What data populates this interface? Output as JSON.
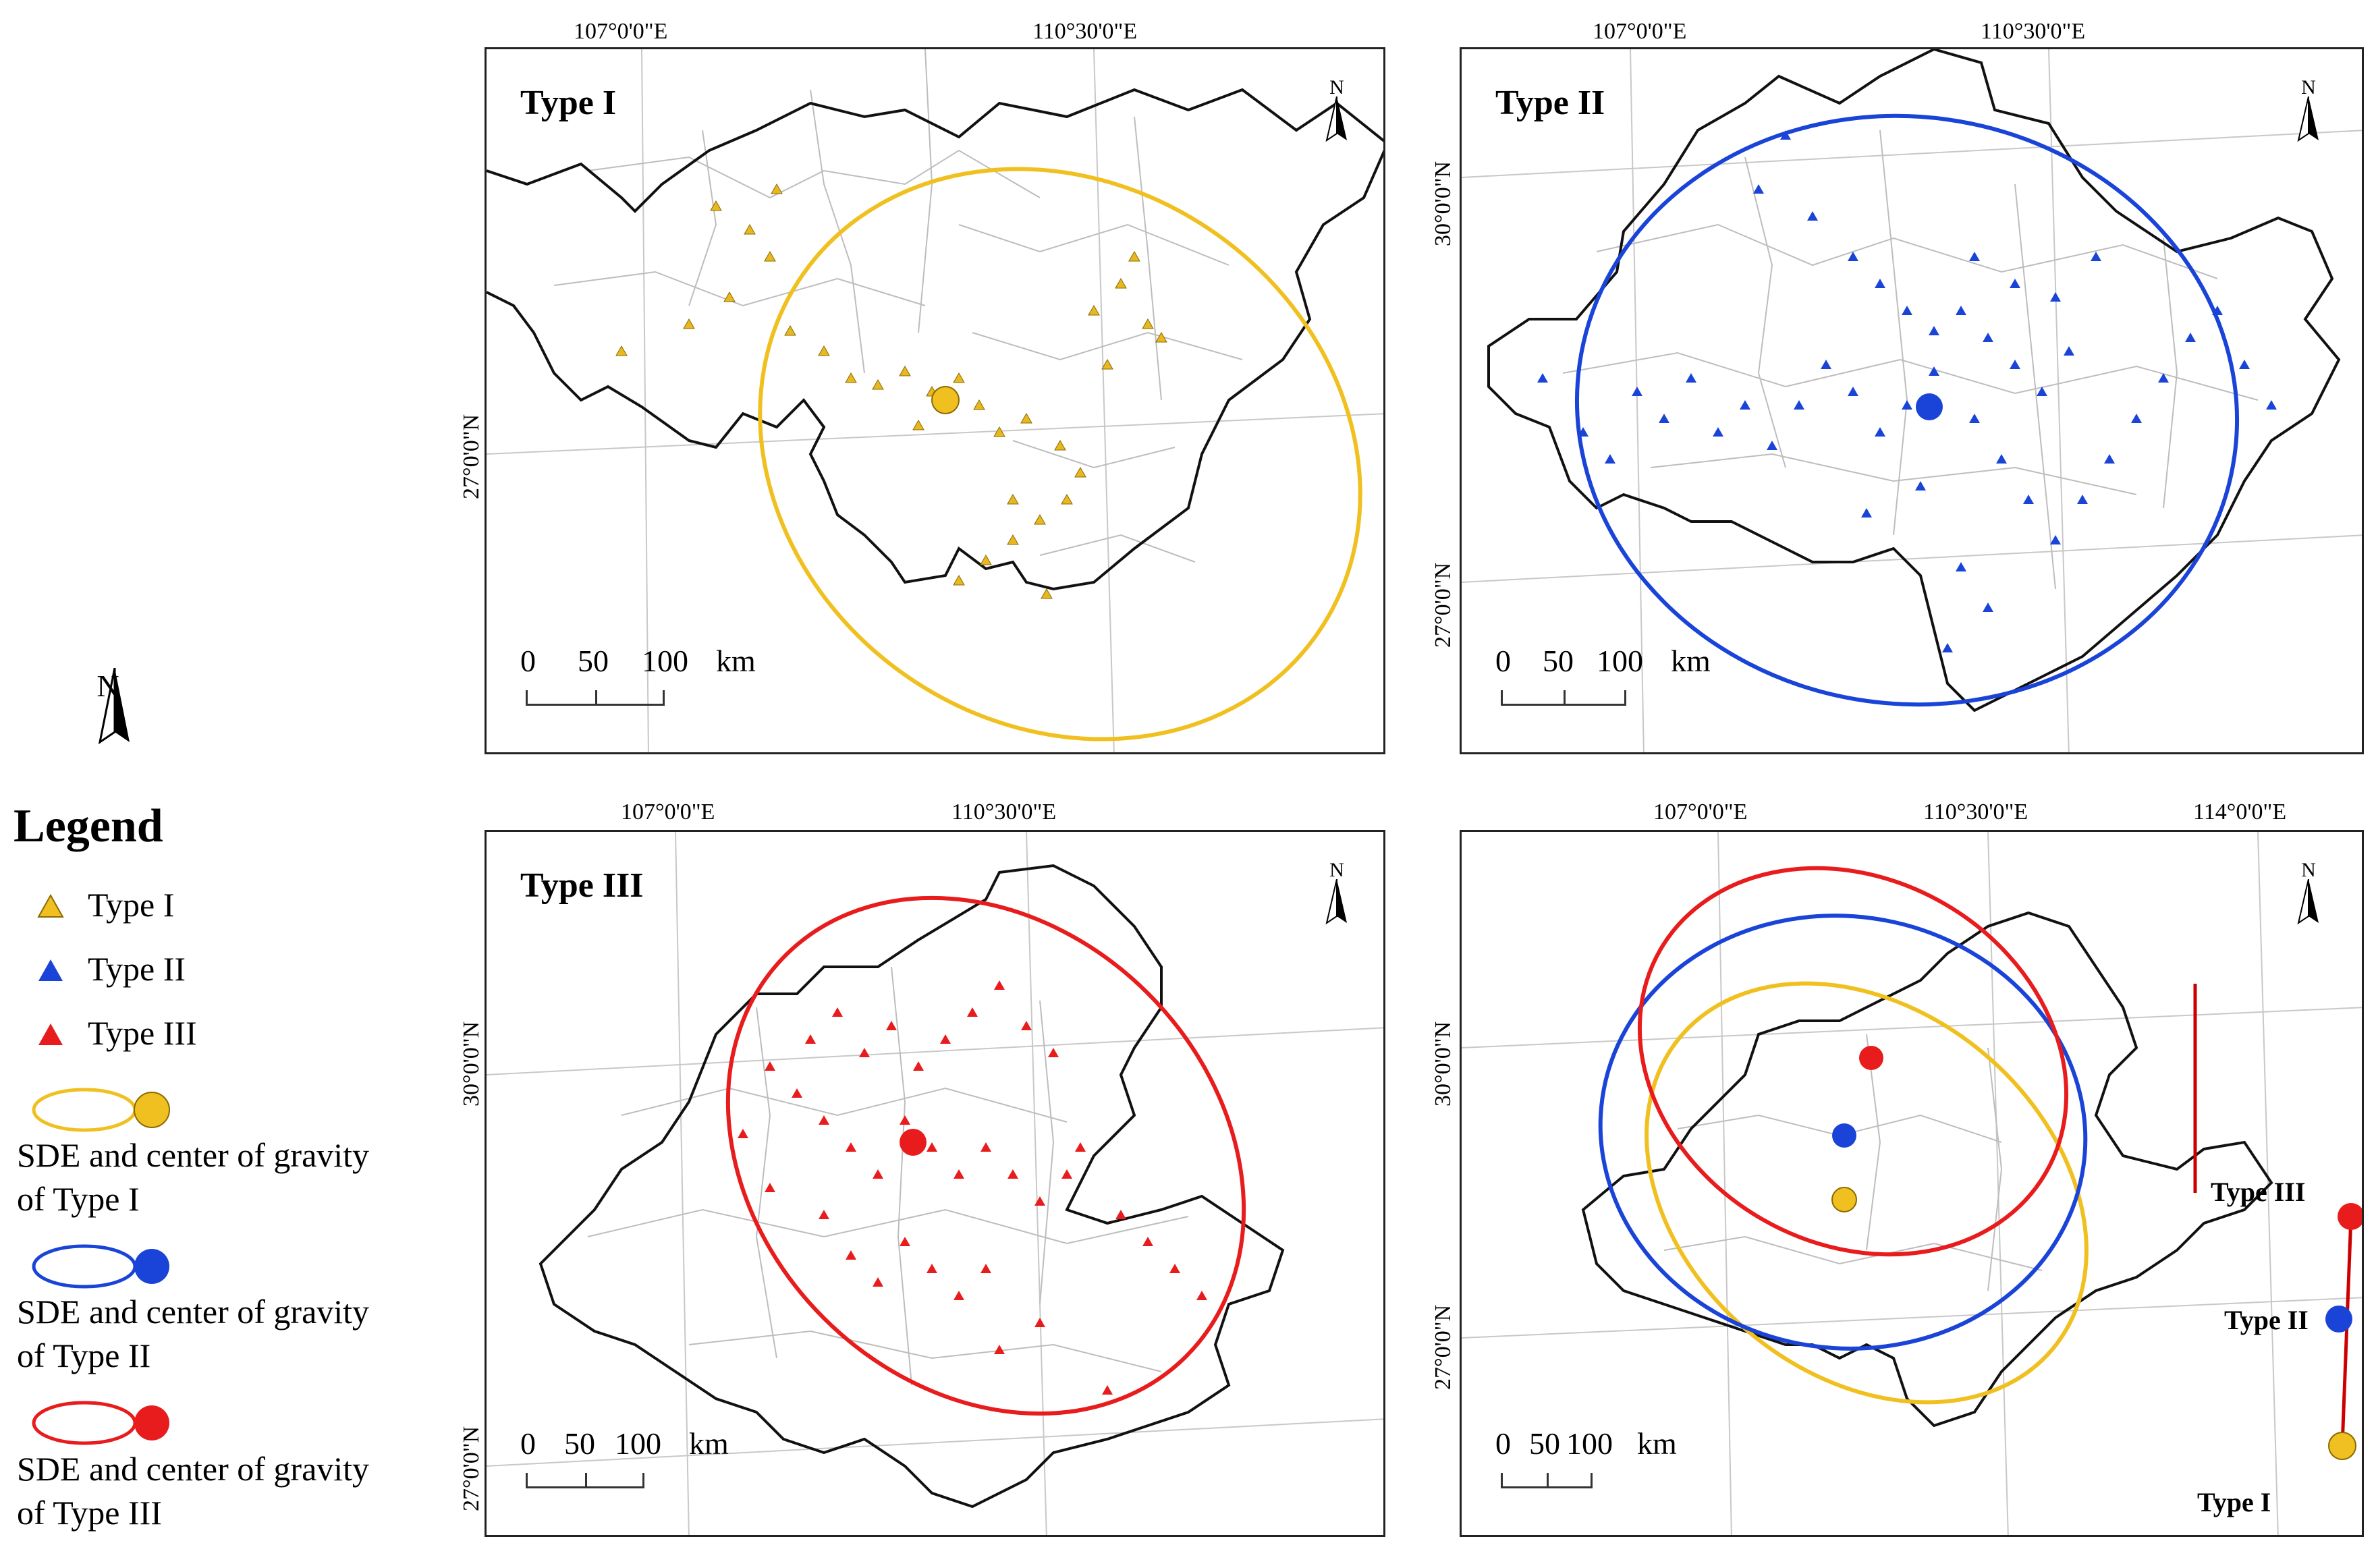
{
  "panels": [
    {
      "title": "Type I",
      "lon_labels": [
        "107°0'0\"E",
        "110°30'0\"E"
      ],
      "lat_labels": [
        "27°0'0\"N"
      ],
      "scale": [
        "0",
        "50",
        "100",
        "km"
      ],
      "north": "N",
      "color": "#f0c020"
    },
    {
      "title": "Type II",
      "lon_labels": [
        "107°0'0\"E",
        "110°30'0\"E"
      ],
      "lat_labels": [
        "30°0'0\"N",
        "27°0'0\"N"
      ],
      "scale": [
        "0",
        "50",
        "100",
        "km"
      ],
      "north": "N",
      "color": "#1a44d8"
    },
    {
      "title": "Type III",
      "lon_labels": [
        "107°0'0\"E",
        "110°30'0\"E"
      ],
      "lat_labels": [
        "30°0'0\"N",
        "27°0'0\"N"
      ],
      "scale": [
        "0",
        "50",
        "100",
        "km"
      ],
      "north": "N",
      "color": "#e81c1c"
    },
    {
      "title": "",
      "lon_labels": [
        "107°0'0\"E",
        "110°30'0\"E",
        "114°0'0\"E"
      ],
      "lat_labels": [
        "30°0'0\"N",
        "27°0'0\"N"
      ],
      "scale": [
        "0",
        "50",
        "100",
        "km"
      ],
      "north": "N",
      "migration_labels": [
        "Type III",
        "Type II",
        "Type I"
      ]
    }
  ],
  "legend": {
    "north": "N",
    "title": "Legend",
    "items": [
      {
        "label": "Type I",
        "color": "#f0c020"
      },
      {
        "label": "Type II",
        "color": "#1a44d8"
      },
      {
        "label": "Type III",
        "color": "#e81c1c"
      }
    ],
    "sde": [
      {
        "line1": "SDE and center of gravity",
        "line2": "of Type I",
        "color": "#f0c020"
      },
      {
        "line1": "SDE and center of gravity",
        "line2": "of Type II",
        "color": "#1a44d8"
      },
      {
        "line1": "SDE and center of gravity",
        "line2": "of Type III",
        "color": "#e81c1c"
      }
    ]
  }
}
